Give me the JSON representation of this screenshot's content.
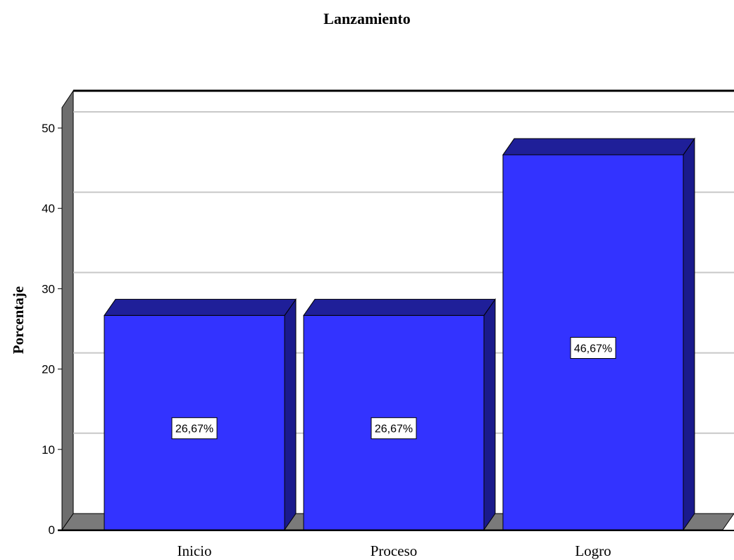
{
  "chart_data": {
    "type": "bar",
    "title": "Lanzamiento",
    "xlabel": "",
    "ylabel": "Porcentaje",
    "categories": [
      "Inicio",
      "Proceso",
      "Logro"
    ],
    "values": [
      26.67,
      26.67,
      46.67
    ],
    "data_labels": [
      "26,67%",
      "26,67%",
      "46,67%"
    ],
    "ylim": [
      0,
      50
    ],
    "yticks": [
      "0",
      "10",
      "20",
      "30",
      "40",
      "50"
    ],
    "grid": true,
    "legend": "none",
    "colors": {
      "bar_front": "#3333ff",
      "bar_top": "#1f1f99",
      "bar_side": "#1a1a8c",
      "floor": "#7a7a7a",
      "wall_side": "#6e6e6e",
      "gridline": "#c8c8c8"
    }
  }
}
